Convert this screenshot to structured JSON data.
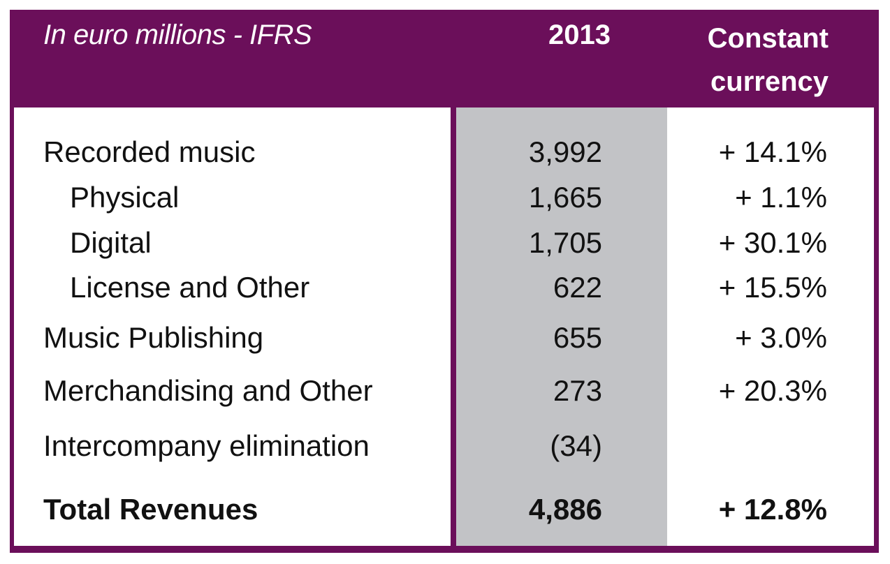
{
  "header": {
    "label": "In euro millions - IFRS",
    "year": "2013",
    "constant_currency_line1": "Constant",
    "constant_currency_line2": "currency"
  },
  "rows": [
    {
      "label": "Recorded music",
      "value": "3,992",
      "change": "+ 14.1%"
    },
    {
      "label": "Physical",
      "value": "1,665",
      "change": "+ 1.1%"
    },
    {
      "label": "Digital",
      "value": "1,705",
      "change": "+ 30.1%"
    },
    {
      "label": "License and Other",
      "value": "622",
      "change": "+ 15.5%"
    },
    {
      "label": "Music Publishing",
      "value": "655",
      "change": "+ 3.0%"
    },
    {
      "label": "Merchandising and Other",
      "value": "273",
      "change": "+ 20.3%"
    },
    {
      "label": "Intercompany elimination",
      "value": "(34)",
      "change": ""
    },
    {
      "label": "Total Revenues",
      "value": "4,886",
      "change": "+ 12.8%"
    }
  ],
  "colors": {
    "frame": "#6b0f5a",
    "highlight_column": "#c2c3c6"
  }
}
